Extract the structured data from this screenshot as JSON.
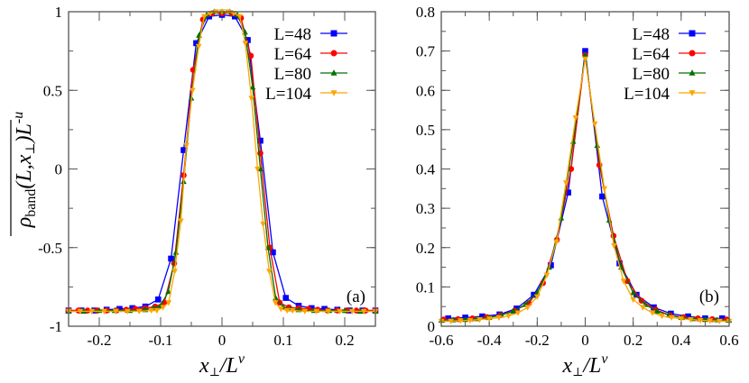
{
  "chart_data": [
    {
      "type": "line",
      "panel_label": "(a)",
      "xlim": [
        -0.25,
        0.25
      ],
      "ylim": [
        -1,
        1
      ],
      "xticks": [
        -0.2,
        -0.1,
        0,
        0.1,
        0.2
      ],
      "xtick_labels": [
        "-0.2",
        "-0.1",
        "0",
        "0.1",
        "0.2"
      ],
      "yticks": [
        -1,
        -0.5,
        0,
        0.5,
        1
      ],
      "ytick_labels": [
        "-1",
        "-0.5",
        "0",
        "0.5",
        "1"
      ],
      "xlabel": {
        "main": "x",
        "sub": "⊥",
        "mid": "/L",
        "sup": "v"
      },
      "ylabel": {
        "main": "ρ",
        "sub": "band",
        "args": "(L,x",
        "argsub": "⊥",
        "tail": ")L",
        "sup": "-u"
      },
      "legend_position": "top-right",
      "grid": false,
      "series": [
        {
          "name": "L=48",
          "color": "#0000ff",
          "marker": "square",
          "x": [
            -0.25,
            -0.229,
            -0.208,
            -0.188,
            -0.167,
            -0.146,
            -0.125,
            -0.104,
            -0.083,
            -0.0625,
            -0.042,
            -0.021,
            0,
            0.021,
            0.042,
            0.0625,
            0.083,
            0.104,
            0.125,
            0.146,
            0.167,
            0.188,
            0.208,
            0.229,
            0.25
          ],
          "y": [
            -0.9,
            -0.9,
            -0.9,
            -0.895,
            -0.89,
            -0.885,
            -0.875,
            -0.83,
            -0.57,
            0.12,
            0.8,
            0.97,
            0.98,
            0.97,
            0.82,
            0.18,
            -0.53,
            -0.82,
            -0.87,
            -0.885,
            -0.89,
            -0.895,
            -0.9,
            -0.9,
            -0.9
          ]
        },
        {
          "name": "L=64",
          "color": "#ff0000",
          "marker": "circle",
          "x": [
            -0.25,
            -0.234,
            -0.219,
            -0.203,
            -0.188,
            -0.172,
            -0.156,
            -0.141,
            -0.125,
            -0.109,
            -0.094,
            -0.078,
            -0.0625,
            -0.047,
            -0.031,
            -0.016,
            0,
            0.016,
            0.031,
            0.047,
            0.0625,
            0.078,
            0.094,
            0.109,
            0.125,
            0.141,
            0.156,
            0.172,
            0.188,
            0.203,
            0.219,
            0.234,
            0.25
          ],
          "y": [
            -0.9,
            -0.9,
            -0.9,
            -0.9,
            -0.9,
            -0.9,
            -0.895,
            -0.89,
            -0.885,
            -0.875,
            -0.85,
            -0.6,
            -0.04,
            0.63,
            0.95,
            0.99,
            0.99,
            0.99,
            0.96,
            0.72,
            0.1,
            -0.5,
            -0.85,
            -0.88,
            -0.885,
            -0.89,
            -0.895,
            -0.9,
            -0.9,
            -0.9,
            -0.9,
            -0.9,
            -0.9
          ]
        },
        {
          "name": "L=80",
          "color": "#007000",
          "marker": "triangle-up",
          "x": [
            -0.25,
            -0.225,
            -0.2,
            -0.175,
            -0.15,
            -0.125,
            -0.1125,
            -0.1,
            -0.0875,
            -0.075,
            -0.0625,
            -0.05,
            -0.0375,
            -0.025,
            -0.0125,
            0,
            0.0125,
            0.025,
            0.0375,
            0.05,
            0.0625,
            0.075,
            0.0875,
            0.1,
            0.1125,
            0.125,
            0.15,
            0.175,
            0.2,
            0.225,
            0.25
          ],
          "y": [
            -0.905,
            -0.905,
            -0.9,
            -0.9,
            -0.9,
            -0.895,
            -0.885,
            -0.87,
            -0.78,
            -0.53,
            -0.08,
            0.45,
            0.85,
            0.98,
            1.0,
            1.0,
            1.0,
            0.98,
            0.87,
            0.52,
            0.0,
            -0.5,
            -0.82,
            -0.88,
            -0.89,
            -0.895,
            -0.9,
            -0.9,
            -0.9,
            -0.905,
            -0.905
          ]
        },
        {
          "name": "L=104",
          "color": "#ffa500",
          "marker": "triangle-down",
          "x": [
            -0.25,
            -0.231,
            -0.212,
            -0.192,
            -0.173,
            -0.154,
            -0.135,
            -0.115,
            -0.106,
            -0.096,
            -0.087,
            -0.077,
            -0.067,
            -0.058,
            -0.048,
            -0.038,
            -0.029,
            -0.019,
            -0.0096,
            0,
            0.0096,
            0.019,
            0.029,
            0.038,
            0.048,
            0.058,
            0.067,
            0.077,
            0.087,
            0.096,
            0.106,
            0.115,
            0.135,
            0.154,
            0.173,
            0.192,
            0.212,
            0.231,
            0.25
          ],
          "y": [
            -0.905,
            -0.905,
            -0.905,
            -0.905,
            -0.905,
            -0.905,
            -0.905,
            -0.9,
            -0.9,
            -0.88,
            -0.85,
            -0.65,
            -0.33,
            0.15,
            0.5,
            0.78,
            0.97,
            0.99,
            1.0,
            1.0,
            1.0,
            0.99,
            0.97,
            0.8,
            0.45,
            0.0,
            -0.35,
            -0.65,
            -0.85,
            -0.89,
            -0.9,
            -0.9,
            -0.905,
            -0.905,
            -0.905,
            -0.905,
            -0.905,
            -0.905,
            -0.905
          ]
        }
      ]
    },
    {
      "type": "line",
      "panel_label": "(b)",
      "xlim": [
        -0.6,
        0.6
      ],
      "ylim": [
        0,
        0.8
      ],
      "xticks": [
        -0.6,
        -0.4,
        -0.2,
        0,
        0.2,
        0.4,
        0.6
      ],
      "xtick_labels": [
        "-0.6",
        "-0.4",
        "-0.2",
        "0",
        "0.2",
        "0.4",
        "0.6"
      ],
      "yticks": [
        0,
        0.1,
        0.2,
        0.3,
        0.4,
        0.5,
        0.6,
        0.7,
        0.8
      ],
      "ytick_labels": [
        "0",
        "0.1",
        "0.2",
        "0.3",
        "0.4",
        "0.5",
        "0.6",
        "0.7",
        "0.8"
      ],
      "xlabel": {
        "main": "x",
        "sub": "⊥",
        "mid": "/L",
        "sup": "v"
      },
      "legend_position": "top-right",
      "grid": false,
      "series": [
        {
          "name": "L=48",
          "color": "#0000ff",
          "marker": "square",
          "x": [
            -0.571,
            -0.5,
            -0.429,
            -0.357,
            -0.286,
            -0.214,
            -0.143,
            -0.071,
            0,
            0.071,
            0.143,
            0.214,
            0.286,
            0.357,
            0.429,
            0.5,
            0.571
          ],
          "y": [
            0.02,
            0.022,
            0.025,
            0.03,
            0.045,
            0.08,
            0.155,
            0.34,
            0.7,
            0.33,
            0.16,
            0.08,
            0.048,
            0.032,
            0.025,
            0.02,
            0.02
          ]
        },
        {
          "name": "L=64",
          "color": "#ff0000",
          "marker": "circle",
          "x": [
            -0.59,
            -0.53,
            -0.47,
            -0.41,
            -0.353,
            -0.294,
            -0.235,
            -0.176,
            -0.118,
            -0.059,
            0,
            0.059,
            0.118,
            0.176,
            0.235,
            0.294,
            0.353,
            0.41,
            0.47,
            0.53,
            0.59
          ],
          "y": [
            0.017,
            0.018,
            0.02,
            0.023,
            0.028,
            0.04,
            0.058,
            0.11,
            0.22,
            0.4,
            0.69,
            0.41,
            0.23,
            0.115,
            0.065,
            0.042,
            0.028,
            0.023,
            0.02,
            0.018,
            0.017
          ]
        },
        {
          "name": "L=80",
          "color": "#007000",
          "marker": "triangle-up",
          "x": [
            -0.6,
            -0.55,
            -0.5,
            -0.45,
            -0.4,
            -0.35,
            -0.3,
            -0.25,
            -0.2,
            -0.15,
            -0.1,
            -0.05,
            0,
            0.05,
            0.1,
            0.15,
            0.2,
            0.25,
            0.3,
            0.35,
            0.4,
            0.45,
            0.5,
            0.55,
            0.6
          ],
          "y": [
            0.015,
            0.016,
            0.017,
            0.019,
            0.022,
            0.028,
            0.038,
            0.055,
            0.085,
            0.15,
            0.275,
            0.47,
            0.69,
            0.46,
            0.27,
            0.15,
            0.085,
            0.055,
            0.038,
            0.028,
            0.022,
            0.019,
            0.017,
            0.016,
            0.015
          ]
        },
        {
          "name": "L=104",
          "color": "#ffa500",
          "marker": "triangle-down",
          "x": [
            -0.6,
            -0.56,
            -0.52,
            -0.48,
            -0.44,
            -0.4,
            -0.36,
            -0.32,
            -0.28,
            -0.24,
            -0.2,
            -0.16,
            -0.12,
            -0.08,
            -0.04,
            0,
            0.04,
            0.08,
            0.12,
            0.16,
            0.2,
            0.24,
            0.28,
            0.32,
            0.36,
            0.4,
            0.44,
            0.48,
            0.52,
            0.56,
            0.6
          ],
          "y": [
            0.013,
            0.013,
            0.014,
            0.015,
            0.017,
            0.019,
            0.022,
            0.026,
            0.034,
            0.048,
            0.075,
            0.13,
            0.215,
            0.365,
            0.53,
            0.68,
            0.515,
            0.35,
            0.205,
            0.115,
            0.068,
            0.048,
            0.034,
            0.026,
            0.022,
            0.019,
            0.017,
            0.015,
            0.014,
            0.013,
            0.013
          ]
        }
      ]
    }
  ]
}
